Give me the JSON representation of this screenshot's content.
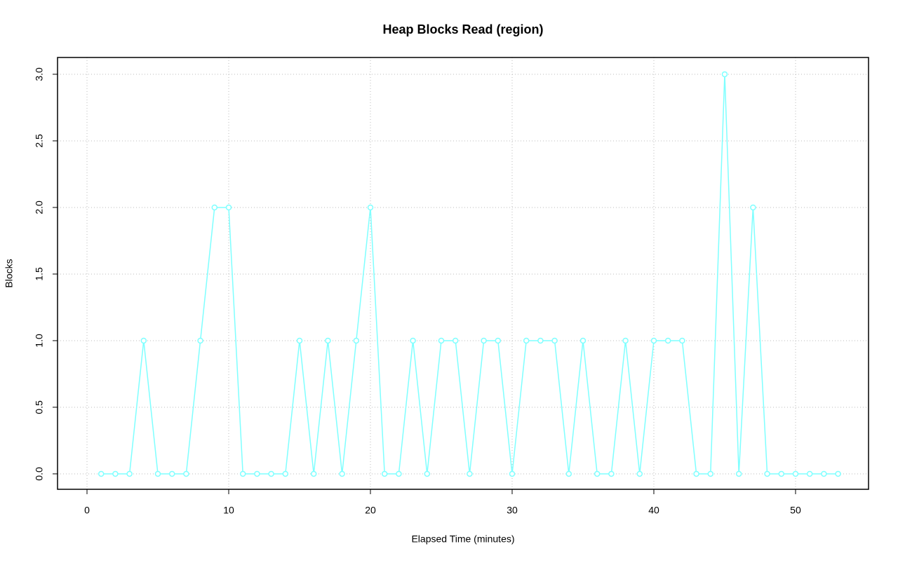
{
  "chart_data": {
    "type": "line",
    "title": "Heap Blocks Read (region)",
    "x_label": "Elapsed Time (minutes)",
    "y_label": "Blocks",
    "x": [
      1,
      2,
      3,
      4,
      5,
      6,
      7,
      8,
      9,
      10,
      11,
      12,
      13,
      14,
      15,
      16,
      17,
      18,
      19,
      20,
      21,
      22,
      23,
      24,
      25,
      26,
      27,
      28,
      29,
      30,
      31,
      32,
      33,
      34,
      35,
      36,
      37,
      38,
      39,
      40,
      41,
      42,
      43,
      44,
      45,
      46,
      47,
      48,
      49,
      50,
      51,
      52,
      53
    ],
    "series": [
      {
        "color": "#7fffff",
        "values": [
          0,
          0,
          0,
          1,
          0,
          0,
          0,
          1,
          2,
          2,
          0,
          0,
          0,
          0,
          1,
          0,
          1,
          0,
          1,
          2,
          0,
          0,
          1,
          0,
          1,
          1,
          0,
          1,
          1,
          0,
          1,
          1,
          1,
          0,
          1,
          0,
          0,
          1,
          0,
          1,
          1,
          1,
          0,
          0,
          3,
          0,
          2,
          0,
          0,
          0,
          0,
          0,
          0
        ]
      }
    ],
    "xlim": [
      -2.08,
      55.15
    ],
    "ylim": [
      -0.116,
      3.126
    ],
    "xticks": [
      0,
      10,
      20,
      30,
      40,
      50
    ],
    "yticks": [
      {
        "value": 0,
        "label": "0.0"
      },
      {
        "value": 0.5,
        "label": "0.5"
      },
      {
        "value": 1,
        "label": "1.0"
      },
      {
        "value": 1.5,
        "label": "1.5"
      },
      {
        "value": 2,
        "label": "2.0"
      },
      {
        "value": 2.5,
        "label": "2.5"
      },
      {
        "value": 3,
        "label": "3.0"
      }
    ],
    "grid": true
  }
}
